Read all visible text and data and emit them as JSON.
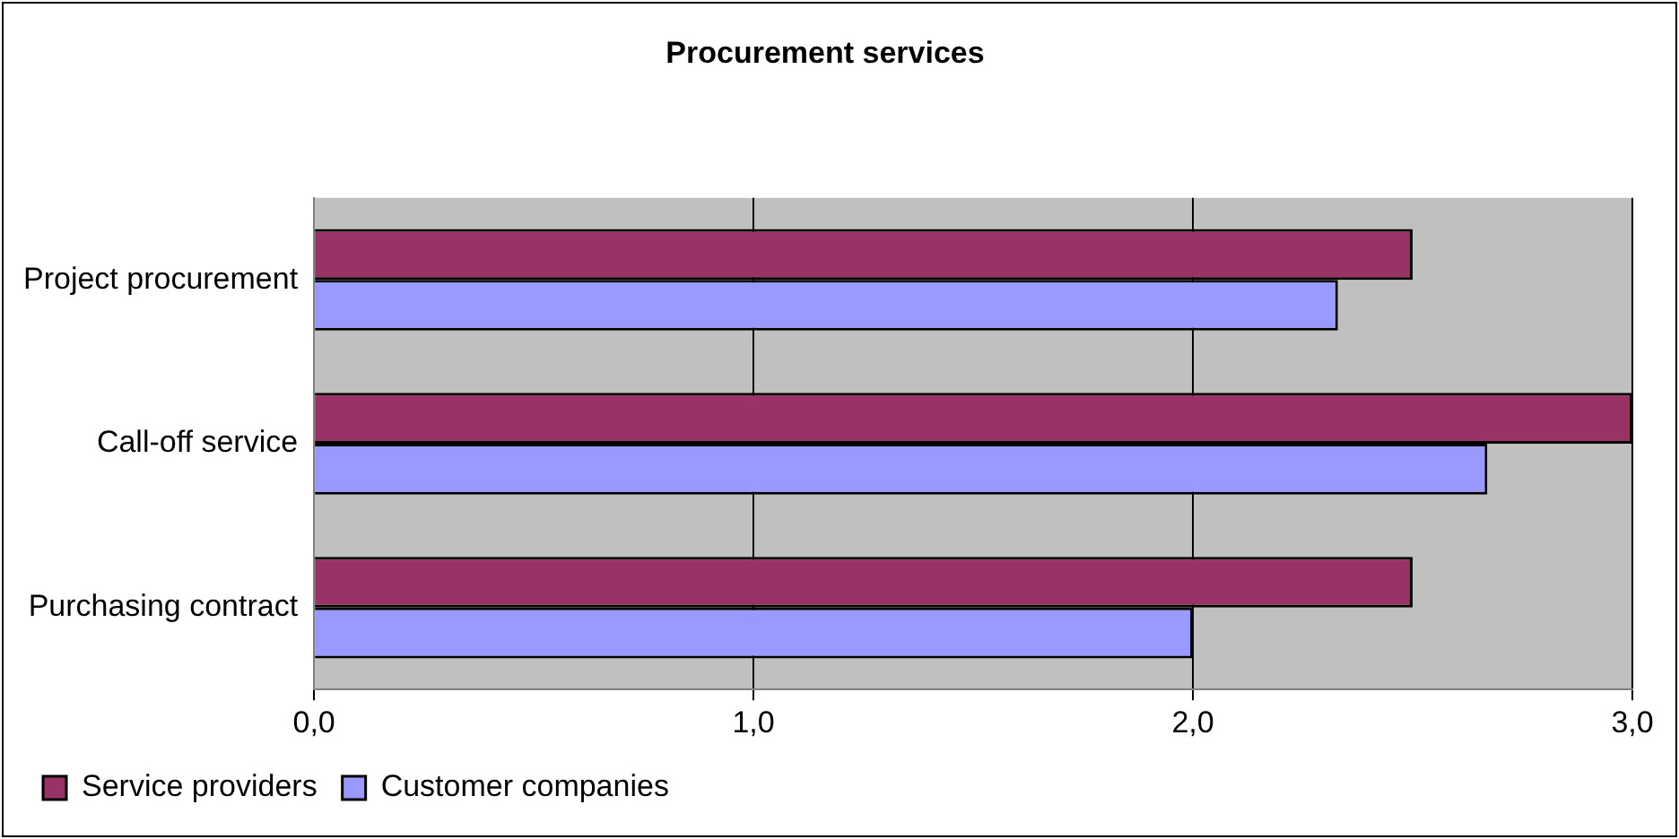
{
  "chart_data": {
    "type": "bar",
    "orientation": "horizontal",
    "title": "Procurement services",
    "categories": [
      "Project procurement",
      "Call-off service",
      "Purchasing contract"
    ],
    "series": [
      {
        "name": "Service providers",
        "color": "#993366",
        "values": [
          2.5,
          3.0,
          2.5
        ]
      },
      {
        "name": "Customer companies",
        "color": "#9999ff",
        "values": [
          2.33,
          2.67,
          2.0
        ]
      }
    ],
    "xlim": [
      0,
      3
    ],
    "xticks": [
      {
        "value": 0,
        "label": "0,0"
      },
      {
        "value": 1,
        "label": "1,0"
      },
      {
        "value": 2,
        "label": "2,0"
      },
      {
        "value": 3,
        "label": "3,0"
      }
    ],
    "grid": "x",
    "legend": "bottom left"
  }
}
